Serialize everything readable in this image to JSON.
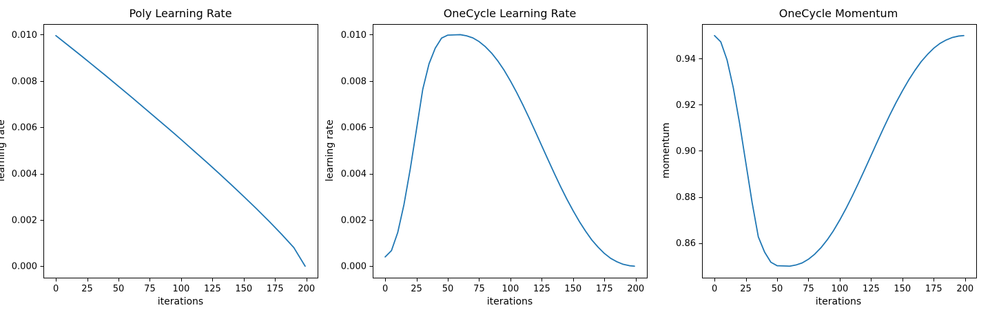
{
  "chart_data": [
    {
      "type": "line",
      "title": "Poly Learning Rate",
      "xlabel": "iterations",
      "ylabel": "learning rate",
      "xlim": [
        -9.95,
        208.95
      ],
      "ylim": [
        -0.000498,
        0.010458
      ],
      "xticks": [
        0,
        25,
        50,
        75,
        100,
        125,
        150,
        175,
        200
      ],
      "yticks": [
        0.0,
        0.002,
        0.004,
        0.006,
        0.008,
        0.01
      ],
      "ytick_decimals": 3,
      "grid": false,
      "color": "#1f77b4",
      "series": [
        {
          "x": [
            0,
            10,
            20,
            30,
            40,
            50,
            60,
            70,
            80,
            90,
            100,
            110,
            120,
            130,
            140,
            150,
            160,
            170,
            180,
            190,
            199
          ],
          "y": [
            0.00996,
            0.00953,
            0.0091,
            0.00866,
            0.00822,
            0.00777,
            0.00732,
            0.00686,
            0.0064,
            0.00594,
            0.00547,
            0.00499,
            0.00451,
            0.00402,
            0.00352,
            0.00301,
            0.00249,
            0.00195,
            0.00139,
            0.0008,
            0.0
          ]
        }
      ]
    },
    {
      "type": "line",
      "title": "OneCycle Learning Rate",
      "xlabel": "iterations",
      "ylabel": "learning rate",
      "xlim": [
        -9.95,
        208.95
      ],
      "ylim": [
        -0.000498,
        0.010458
      ],
      "xticks": [
        0,
        25,
        50,
        75,
        100,
        125,
        150,
        175,
        200
      ],
      "yticks": [
        0.0,
        0.002,
        0.004,
        0.006,
        0.008,
        0.01
      ],
      "ytick_decimals": 3,
      "grid": false,
      "color": "#1f77b4",
      "series": [
        {
          "x": [
            0,
            5,
            10,
            15,
            20,
            25,
            30,
            35,
            40,
            45,
            50,
            55,
            60,
            65,
            70,
            75,
            80,
            85,
            90,
            95,
            100,
            105,
            110,
            115,
            120,
            125,
            130,
            135,
            140,
            145,
            150,
            155,
            160,
            165,
            170,
            175,
            180,
            185,
            190,
            195,
            199
          ],
          "y": [
            0.0004,
            0.00067,
            0.00145,
            0.00266,
            0.00419,
            0.00591,
            0.00764,
            0.00874,
            0.00942,
            0.00985,
            0.00998,
            0.00999,
            0.01,
            0.00995,
            0.00986,
            0.0097,
            0.00948,
            0.0092,
            0.00886,
            0.00846,
            0.008,
            0.0075,
            0.00696,
            0.00639,
            0.0058,
            0.0052,
            0.0046,
            0.00401,
            0.00344,
            0.0029,
            0.0024,
            0.00193,
            0.00151,
            0.00113,
            0.00082,
            0.00055,
            0.00034,
            0.00019,
            8e-05,
            2e-05,
            0.0
          ]
        }
      ]
    },
    {
      "type": "line",
      "title": "OneCycle Momentum",
      "xlabel": "iterations",
      "ylabel": "momentum",
      "xlim": [
        -9.95,
        208.95
      ],
      "ylim": [
        0.845,
        0.955
      ],
      "xticks": [
        0,
        25,
        50,
        75,
        100,
        125,
        150,
        175,
        200
      ],
      "yticks": [
        0.86,
        0.88,
        0.9,
        0.92,
        0.94
      ],
      "ytick_decimals": 2,
      "grid": false,
      "color": "#1f77b4",
      "series": [
        {
          "x": [
            0,
            5,
            10,
            15,
            20,
            25,
            30,
            35,
            40,
            45,
            50,
            55,
            60,
            65,
            70,
            75,
            80,
            85,
            90,
            95,
            100,
            105,
            110,
            115,
            120,
            125,
            130,
            135,
            140,
            145,
            150,
            155,
            160,
            165,
            170,
            175,
            180,
            185,
            190,
            195,
            199
          ],
          "y": [
            0.95,
            0.9473,
            0.9395,
            0.9274,
            0.9121,
            0.8949,
            0.8777,
            0.8627,
            0.8561,
            0.8517,
            0.8502,
            0.8501,
            0.85,
            0.8505,
            0.8514,
            0.853,
            0.8552,
            0.858,
            0.8614,
            0.8654,
            0.87,
            0.875,
            0.8804,
            0.8861,
            0.892,
            0.898,
            0.904,
            0.9099,
            0.9156,
            0.921,
            0.926,
            0.9307,
            0.9349,
            0.9387,
            0.9418,
            0.9445,
            0.9466,
            0.9481,
            0.9492,
            0.9498,
            0.95
          ]
        }
      ]
    }
  ]
}
